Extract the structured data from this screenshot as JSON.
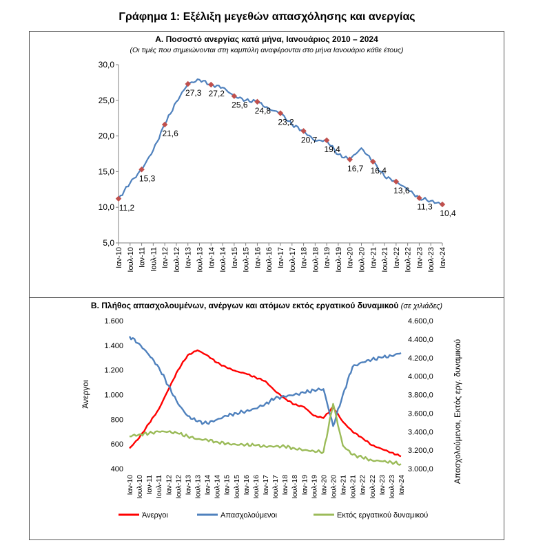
{
  "page_title": "Γράφημα 1: Εξέλιξη μεγεθών απασχόλησης και ανεργίας",
  "chart_data": [
    {
      "type": "line",
      "title": "Α. Ποσοστό ανεργίας κατά μήνα, Ιανουάριος 2010 – 2024",
      "subtitle": "(Οι τιμές που σημειώνονται στη καμπύλη αναφέρονται στο μήνα Ιανουάριο κάθε έτους)",
      "ylim": [
        5,
        30
      ],
      "yticks": [
        "5,0",
        "10,0",
        "15,0",
        "20,0",
        "25,0",
        "30,0"
      ],
      "ytick_values": [
        5,
        10,
        15,
        20,
        25,
        30
      ],
      "categories": [
        "Ιαν-10",
        "Ιουλ-10",
        "Ιαν-11",
        "Ιουλ-11",
        "Ιαν-12",
        "Ιουλ-12",
        "Ιαν-13",
        "Ιουλ-13",
        "Ιαν-14",
        "Ιουλ-14",
        "Ιαν-15",
        "Ιουλ-15",
        "Ιαν-16",
        "Ιουλ-16",
        "Ιαν-17",
        "Ιουλ-17",
        "Ιαν-18",
        "Ιουλ-18",
        "Ιαν-19",
        "Ιουλ-19",
        "Ιαν-20",
        "Ιουλ-20",
        "Ιαν-21",
        "Ιουλ-21",
        "Ιαν-22",
        "Ιουλ-22",
        "Ιαν-23",
        "Ιουλ-23",
        "Ιαν-24"
      ],
      "values": [
        11.2,
        13.4,
        15.3,
        18.0,
        21.6,
        24.8,
        27.3,
        27.9,
        27.2,
        26.8,
        25.6,
        25.0,
        24.8,
        23.8,
        23.2,
        21.6,
        20.7,
        19.3,
        19.4,
        17.4,
        16.7,
        18.3,
        16.4,
        14.3,
        13.6,
        12.5,
        11.3,
        10.9,
        10.4
      ],
      "january_labels": [
        "11,2",
        "15,3",
        "21,6",
        "27,3",
        "27,2",
        "25,6",
        "24,8",
        "23,2",
        "20,7",
        "19,4",
        "16,7",
        "16,4",
        "13,6",
        "11,3",
        "10,4"
      ],
      "colors": {
        "line": "#4f81bd",
        "marker": "#c0504d"
      }
    },
    {
      "type": "line",
      "title": "Β. Πλήθος απασχολουμένων, ανέργων και ατόμων εκτός εργατικού δυναμικού",
      "title_note": "(σε χιλιάδες)",
      "ylabel_left": "Άνεργοι",
      "ylabel_right": "Απασχολούμενοι, Εκτός εργ. δυναμικού",
      "ylim_left": [
        400,
        1600
      ],
      "ylim_right": [
        3000,
        4600
      ],
      "yticks_left": [
        "400",
        "600",
        "800",
        "1.000",
        "1.200",
        "1.400",
        "1.600"
      ],
      "ytick_values_left": [
        400,
        600,
        800,
        1000,
        1200,
        1400,
        1600
      ],
      "yticks_right": [
        "3.000,0",
        "3.200,0",
        "3.400,0",
        "3.600,0",
        "3.800,0",
        "4.000,0",
        "4.200,0",
        "4.400,0",
        "4.600,0"
      ],
      "ytick_values_right": [
        3000,
        3200,
        3400,
        3600,
        3800,
        4000,
        4200,
        4400,
        4600
      ],
      "categories": [
        "Ιαν-10",
        "Ιουλ-10",
        "Ιαν-11",
        "Ιουλ-11",
        "Ιαν-12",
        "Ιουλ-12",
        "Ιαν-13",
        "Ιουλ-13",
        "Ιαν-14",
        "Ιουλ-14",
        "Ιαν-15",
        "Ιουλ-15",
        "Ιαν-16",
        "Ιουλ-16",
        "Ιαν-17",
        "Ιουλ-17",
        "Ιαν-18",
        "Ιουλ-18",
        "Ιαν-19",
        "Ιουλ-19",
        "Ιαν-20",
        "Ιουλ-20",
        "Ιαν-21",
        "Ιουλ-21",
        "Ιαν-22",
        "Ιουλ-22",
        "Ιαν-23",
        "Ιουλ-23",
        "Ιαν-24"
      ],
      "series": [
        {
          "name": "Άνεργοι",
          "axis": "left",
          "color": "#ff0000",
          "values": [
            565,
            650,
            765,
            880,
            1040,
            1200,
            1320,
            1360,
            1320,
            1260,
            1220,
            1190,
            1170,
            1140,
            1110,
            1030,
            970,
            920,
            900,
            830,
            810,
            900,
            780,
            700,
            650,
            590,
            560,
            530,
            500
          ]
        },
        {
          "name": "Απασχολούμενοι",
          "axis": "right",
          "color": "#4f81bd",
          "values": [
            4430,
            4350,
            4230,
            4100,
            3900,
            3700,
            3570,
            3510,
            3490,
            3530,
            3570,
            3600,
            3620,
            3650,
            3700,
            3760,
            3780,
            3800,
            3820,
            3850,
            3860,
            3460,
            3800,
            4100,
            4150,
            4180,
            4200,
            4220,
            4250
          ]
        },
        {
          "name": "Εκτός εργατικού δυναμικού",
          "axis": "right",
          "color": "#9bbb59",
          "values": [
            3350,
            3370,
            3380,
            3400,
            3400,
            3380,
            3350,
            3320,
            3310,
            3290,
            3270,
            3260,
            3260,
            3250,
            3240,
            3240,
            3240,
            3220,
            3200,
            3190,
            3180,
            3700,
            3250,
            3150,
            3120,
            3090,
            3080,
            3070,
            3050
          ]
        }
      ],
      "legend_position": "bottom"
    }
  ]
}
